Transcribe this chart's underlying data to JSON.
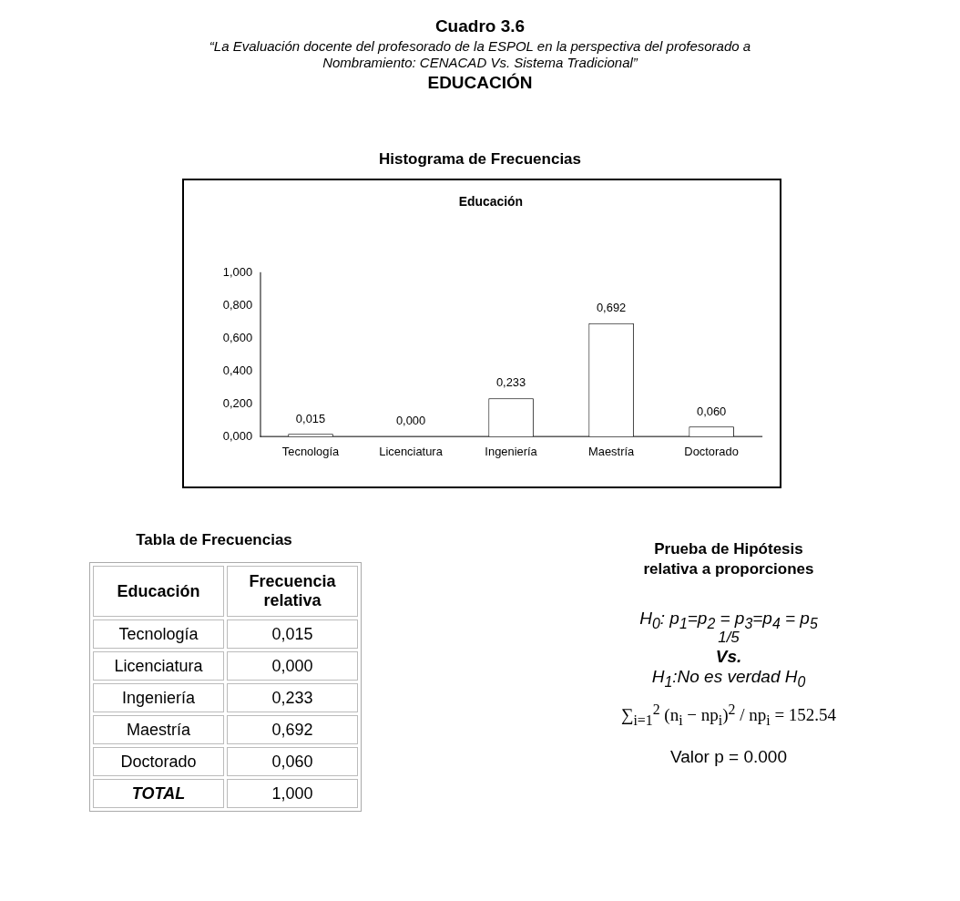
{
  "chart_data": {
    "type": "bar",
    "title": "Educación",
    "subtitle": "“La Evaluación docente del profesorado de la ESPOL en la perspectiva del profesorado a Nombramiento: CENACAD Vs. Sistema Tradicional”",
    "categories": [
      "Tecnología",
      "Licenciatura",
      "Ingeniería",
      "Maestría",
      "Doctorado"
    ],
    "values": [
      0.015,
      0.0,
      0.233,
      0.692,
      0.06
    ],
    "value_labels": [
      "0,015",
      "0,000",
      "0,233",
      "0,692",
      "0,060"
    ],
    "color": "#ffffff",
    "ylim": [
      0,
      1
    ],
    "yticks": [
      {
        "value": 0,
        "label": "0,000"
      },
      {
        "value": 0.2,
        "label": "0,200"
      },
      {
        "value": 0.4,
        "label": "0,400"
      },
      {
        "value": 0.6,
        "label": "0,600"
      },
      {
        "value": 0.8,
        "label": "0,800"
      },
      {
        "value": 1,
        "label": "1,000"
      }
    ],
    "grid": false,
    "legend": false,
    "annotations": [
      "Cuadro 3.6",
      "EDUCACIÓN",
      "Histograma de Frecuencias",
      "Tabla de Frecuencias",
      "Educación",
      "Frecuencia relativa",
      "TOTAL",
      "1,000",
      "Prueba de Hipótesis relativa a proporciones",
      "H$_{0}$:  p$_{1}$=p$_{2}$ = p$_{3}$=p$_{4}$ = p$_{5}$",
      "1/5",
      "Vs.",
      "H$_{1}$:No es verdad H$_{0}$",
      "∑$_{i=1}$$^{2}$ (n$_{i}$ − np$_{i}$)$^{2}$ / np$_{i}$ = 152.54",
      "Valor p = 0.000"
    ]
  }
}
